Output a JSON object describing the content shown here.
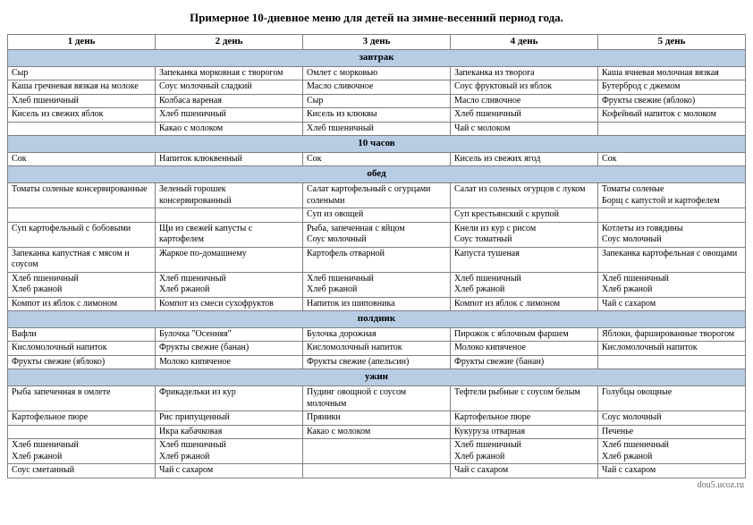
{
  "title": "Примерное 10-дневное меню для детей на зимне-весенний период года.",
  "footer": "dou5.ucoz.ru",
  "table": {
    "column_count": 5,
    "days": [
      "1 день",
      "2 день",
      "3 день",
      "4 день",
      "5 день"
    ],
    "section_bg": "#b8cce4",
    "border_color": "#808080",
    "sections": [
      {
        "name": "завтрак",
        "rows": [
          [
            "Сыр",
            "Запеканка морковная с творогом",
            "Омлет с морковью",
            "Запеканка из творога",
            "Каша ячневая молочная вязкая"
          ],
          [
            "Каша гречневая вязкая на молоке",
            "Соус молочный сладкий",
            "Масло сливочное",
            "Соус фруктовый из яблок",
            "Бутерброд с джемом"
          ],
          [
            "Хлеб пшеничный",
            "Колбаса вареная",
            "Сыр",
            "Масло сливочное",
            "Фрукты свежие (яблоко)"
          ],
          [
            "Кисель из свежих яблок",
            "Хлеб пшеничный",
            "Кисель из клюквы",
            "Хлеб пшеничный",
            "Кофейный напиток с молоком"
          ],
          [
            "",
            "Какао с молоком",
            "Хлеб пшеничный",
            "Чай с молоком",
            ""
          ]
        ]
      },
      {
        "name": "10 часов",
        "rows": [
          [
            "Сок",
            "Напиток клюквенный",
            "Сок",
            "Кисель из свежих ягод",
            "Сок"
          ]
        ]
      },
      {
        "name": "обед",
        "rows": [
          [
            "Томаты соленые консервированные",
            "Зеленый горошек консервированный",
            "Салат картофельный с огурцами солеными",
            "Салат из соленых огурцов с луком",
            "Томаты соленые\nБорщ с капустой и картофелем"
          ],
          [
            "",
            "",
            "Суп из овощей",
            "Суп крестьянский с крупой",
            ""
          ],
          [
            "Суп картофельный с бобовыми",
            "Щи из свежей капусты с картофелем",
            "Рыба, запеченная с яйцом\nСоус молочный",
            "Кнели из кур с рисом\nСоус томатный",
            "Котлеты из говядины\nСоус молочный"
          ],
          [
            "Запеканка капустная с мясом и соусом",
            "Жаркое по-домашнему",
            "Картофель отварной",
            "Капуста тушеная",
            "Запеканка картофельная с овощами"
          ],
          [
            "Хлеб пшеничный\nХлеб ржаной",
            "Хлеб пшеничный\nХлеб ржаной",
            "Хлеб пшеничный\nХлеб ржаной",
            "Хлеб пшеничный\nХлеб ржаной",
            "Хлеб пшеничный\nХлеб ржаной"
          ],
          [
            "Компот из яблок с лимоном",
            "Компот из смеси сухофруктов",
            "Напиток из шиповника",
            "Компот из яблок с лимоном",
            "Чай с сахаром"
          ]
        ]
      },
      {
        "name": "полдник",
        "rows": [
          [
            "Вафли",
            "Булочка \"Осенняя\"",
            "Булочка дорожная",
            "Пирожок с яблочным фаршем",
            "Яблоки, фаршированные творогом"
          ],
          [
            "Кисломолочный напиток",
            "Фрукты свежие (банан)",
            "Кисломолочный напиток",
            "Молоко кипяченое",
            "Кисломолочный напиток"
          ],
          [
            "Фрукты свежие (яблоко)",
            "Молоко кипяченое",
            "Фрукты свежие (апельсин)",
            "Фрукты свежие (банан)",
            ""
          ]
        ]
      },
      {
        "name": "ужин",
        "rows": [
          [
            "Рыба запеченная в омлете",
            "Фрикадельки из кур",
            "Пудинг овощной с соусом молочным",
            "Тефтели рыбные с соусом белым",
            "Голубцы овощные"
          ],
          [
            "Картофельное пюре",
            "Рис припущенный",
            "Пряники",
            "Картофельное пюре",
            "Соус молочный"
          ],
          [
            "",
            "Икра кабачковая",
            "Какао с молоком",
            "Кукуруза отварная",
            "Печенье"
          ],
          [
            "Хлеб пшеничный\nХлеб ржаной",
            "Хлеб пшеничный\nХлеб ржаной",
            "",
            "Хлеб пшеничный\nХлеб ржаной",
            "Хлеб пшеничный\nХлеб ржаной"
          ],
          [
            "Соус сметанный",
            "Чай с сахаром",
            "",
            "Чай с сахаром",
            "Чай с сахаром"
          ]
        ]
      }
    ]
  }
}
